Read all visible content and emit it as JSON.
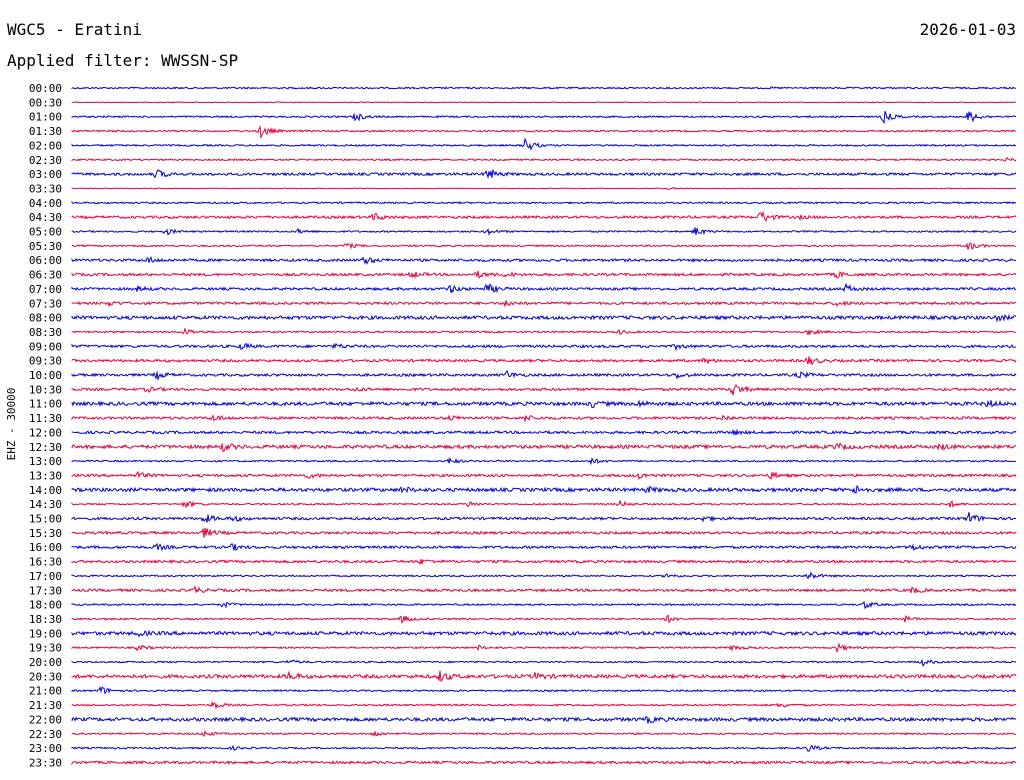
{
  "header": {
    "station": "WGC5 - Eratini",
    "filter": "Applied filter: WWSSN-SP",
    "date": "2026-01-03"
  },
  "chart_data": {
    "type": "line",
    "title": "WGC5 - Eratini",
    "subtitle": "Applied filter: WWSSN-SP",
    "ylabel": "EHZ - 30000",
    "xlabel": "",
    "grid": false,
    "colors": [
      "#0000cc",
      "#e0003c"
    ],
    "rows": [
      "00:00",
      "00:30",
      "01:00",
      "01:30",
      "02:00",
      "02:30",
      "03:00",
      "03:30",
      "04:00",
      "04:30",
      "05:00",
      "05:30",
      "06:00",
      "06:30",
      "07:00",
      "07:30",
      "08:00",
      "08:30",
      "09:00",
      "09:30",
      "10:00",
      "10:30",
      "11:00",
      "11:30",
      "12:00",
      "12:30",
      "13:00",
      "13:30",
      "14:00",
      "14:30",
      "15:00",
      "15:30",
      "16:00",
      "16:30",
      "17:00",
      "17:30",
      "18:00",
      "18:30",
      "19:00",
      "19:30",
      "20:00",
      "20:30",
      "21:00",
      "21:30",
      "22:00",
      "22:30",
      "23:00",
      "23:30"
    ],
    "noise": [
      1,
      0,
      1,
      1,
      1,
      1,
      2,
      0,
      1,
      2,
      1,
      1,
      2,
      2,
      2,
      2,
      3,
      1,
      2,
      2,
      2,
      2,
      3,
      2,
      2,
      3,
      1,
      2,
      3,
      1,
      2,
      2,
      2,
      2,
      1,
      2,
      1,
      1,
      3,
      1,
      1,
      3,
      1,
      1,
      3,
      1,
      1,
      2
    ],
    "events": [
      [
        [
          0.74,
          0.05
        ]
      ],
      [],
      [
        [
          0.3,
          0.6
        ],
        [
          0.86,
          0.8
        ],
        [
          0.95,
          0.9
        ]
      ],
      [
        [
          0.2,
          0.9
        ]
      ],
      [
        [
          0.48,
          1.0
        ]
      ],
      [
        [
          0.99,
          0.2
        ]
      ],
      [
        [
          0.09,
          0.6
        ],
        [
          0.44,
          0.8
        ]
      ],
      [
        [
          0.63,
          0.15
        ]
      ],
      [],
      [
        [
          0.32,
          0.5
        ],
        [
          0.73,
          0.9
        ],
        [
          0.77,
          0.2
        ]
      ],
      [
        [
          0.1,
          0.4
        ],
        [
          0.24,
          0.3
        ],
        [
          0.44,
          0.4
        ],
        [
          0.66,
          0.6
        ]
      ],
      [
        [
          0.29,
          0.4
        ],
        [
          0.95,
          0.6
        ]
      ],
      [
        [
          0.08,
          0.4
        ],
        [
          0.31,
          0.5
        ]
      ],
      [
        [
          0.36,
          0.4
        ],
        [
          0.43,
          0.4
        ],
        [
          0.46,
          0.3
        ],
        [
          0.81,
          0.4
        ]
      ],
      [
        [
          0.07,
          0.3
        ],
        [
          0.4,
          0.5
        ],
        [
          0.44,
          0.7
        ],
        [
          0.82,
          0.5
        ]
      ],
      [
        [
          0.04,
          0.3
        ],
        [
          0.46,
          0.4
        ],
        [
          0.81,
          0.3
        ]
      ],
      [
        [
          0.98,
          0.3
        ]
      ],
      [
        [
          0.12,
          0.5
        ],
        [
          0.58,
          0.3
        ],
        [
          0.78,
          0.4
        ]
      ],
      [
        [
          0.18,
          0.4
        ],
        [
          0.28,
          0.3
        ],
        [
          0.64,
          0.3
        ]
      ],
      [
        [
          0.67,
          0.3
        ],
        [
          0.78,
          0.6
        ]
      ],
      [
        [
          0.09,
          0.5
        ],
        [
          0.46,
          0.5
        ],
        [
          0.64,
          0.4
        ],
        [
          0.77,
          0.4
        ]
      ],
      [
        [
          0.08,
          0.3
        ],
        [
          0.3,
          0.2
        ],
        [
          0.7,
          0.9
        ]
      ],
      [
        [
          0.55,
          0.4
        ],
        [
          0.6,
          0.3
        ],
        [
          0.97,
          0.4
        ]
      ],
      [
        [
          0.15,
          0.4
        ],
        [
          0.4,
          0.3
        ],
        [
          0.48,
          0.4
        ],
        [
          0.69,
          0.3
        ]
      ],
      [
        [
          0.7,
          0.3
        ]
      ],
      [
        [
          0.16,
          0.5
        ],
        [
          0.81,
          0.4
        ],
        [
          0.92,
          0.3
        ]
      ],
      [
        [
          0.4,
          0.4
        ],
        [
          0.55,
          0.4
        ]
      ],
      [
        [
          0.07,
          0.4
        ],
        [
          0.25,
          0.3
        ],
        [
          0.6,
          0.4
        ],
        [
          0.74,
          0.4
        ]
      ],
      [
        [
          0.35,
          0.3
        ],
        [
          0.61,
          0.3
        ],
        [
          0.83,
          0.5
        ]
      ],
      [
        [
          0.12,
          0.5
        ],
        [
          0.42,
          0.4
        ],
        [
          0.58,
          0.4
        ],
        [
          0.93,
          0.4
        ]
      ],
      [
        [
          0.14,
          0.6
        ],
        [
          0.17,
          0.4
        ],
        [
          0.67,
          0.4
        ],
        [
          0.95,
          0.8
        ]
      ],
      [
        [
          0.14,
          0.7
        ]
      ],
      [
        [
          0.09,
          0.4
        ],
        [
          0.17,
          0.4
        ],
        [
          0.89,
          0.4
        ]
      ],
      [
        [
          0.37,
          0.3
        ]
      ],
      [
        [
          0.63,
          0.3
        ],
        [
          0.78,
          0.6
        ]
      ],
      [
        [
          0.13,
          0.4
        ],
        [
          0.89,
          0.4
        ]
      ],
      [
        [
          0.16,
          0.4
        ],
        [
          0.84,
          0.5
        ]
      ],
      [
        [
          0.35,
          0.5
        ],
        [
          0.63,
          0.5
        ],
        [
          0.88,
          0.5
        ]
      ],
      [
        [
          0.07,
          0.3
        ]
      ],
      [
        [
          0.07,
          0.4
        ],
        [
          0.43,
          0.3
        ],
        [
          0.7,
          0.4
        ],
        [
          0.81,
          0.6
        ]
      ],
      [
        [
          0.23,
          0.3
        ],
        [
          0.9,
          0.5
        ]
      ],
      [
        [
          0.23,
          0.5
        ],
        [
          0.39,
          0.7
        ],
        [
          0.49,
          0.4
        ]
      ],
      [
        [
          0.03,
          0.6
        ]
      ],
      [
        [
          0.15,
          0.5
        ],
        [
          0.75,
          0.4
        ]
      ],
      [
        [
          0.61,
          0.4
        ]
      ],
      [
        [
          0.14,
          0.4
        ],
        [
          0.32,
          0.4
        ]
      ],
      [
        [
          0.17,
          0.2
        ],
        [
          0.78,
          0.5
        ]
      ],
      []
    ]
  }
}
